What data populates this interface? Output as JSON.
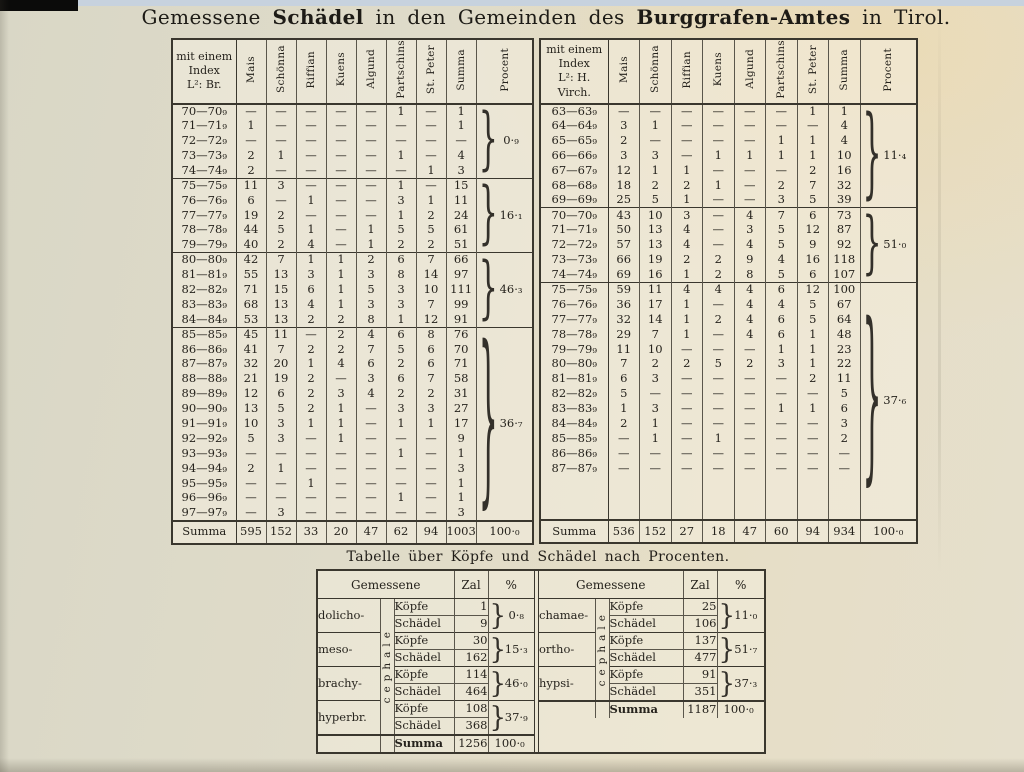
{
  "page": {
    "title_parts": [
      {
        "text": "Gemessene ",
        "bold": false
      },
      {
        "text": "Schädel",
        "bold": true
      },
      {
        "text": " in den Gemeinden des ",
        "bold": false
      },
      {
        "text": "Burggrafen-Amtes",
        "bold": true
      },
      {
        "text": " in Tirol.",
        "bold": false
      }
    ]
  },
  "main_tables": [
    {
      "index_label_lines": [
        "mit einem",
        "Index",
        "L²: Br."
      ],
      "columns": [
        "Mais",
        "Schönna",
        "Riffian",
        "Kuens",
        "Algund",
        "Partschins",
        "St. Peter",
        "Summa",
        "Procent"
      ],
      "rows": [
        {
          "label": "70—70₉",
          "values": [
            "—",
            "—",
            "—",
            "—",
            "—",
            "1",
            "—"
          ],
          "summa": "1"
        },
        {
          "label": "71—71₉",
          "values": [
            "1",
            "—",
            "—",
            "—",
            "—",
            "—",
            "—"
          ],
          "summa": "1"
        },
        {
          "label": "72—72₉",
          "values": [
            "—",
            "—",
            "—",
            "—",
            "—",
            "—",
            "—"
          ],
          "summa": "—"
        },
        {
          "label": "73—73₉",
          "values": [
            "2",
            "1",
            "—",
            "—",
            "—",
            "1",
            "—"
          ],
          "summa": "4"
        },
        {
          "label": "74—74₉",
          "values": [
            "2",
            "—",
            "—",
            "—",
            "—",
            "—",
            "1"
          ],
          "summa": "3"
        },
        {
          "label": "75—75₉",
          "values": [
            "11",
            "3",
            "—",
            "—",
            "—",
            "1",
            "—"
          ],
          "summa": "15"
        },
        {
          "label": "76—76₉",
          "values": [
            "6",
            "—",
            "1",
            "—",
            "—",
            "3",
            "1"
          ],
          "summa": "11"
        },
        {
          "label": "77—77₉",
          "values": [
            "19",
            "2",
            "—",
            "—",
            "—",
            "1",
            "2"
          ],
          "summa": "24"
        },
        {
          "label": "78—78₉",
          "values": [
            "44",
            "5",
            "1",
            "—",
            "1",
            "5",
            "5"
          ],
          "summa": "61"
        },
        {
          "label": "79—79₉",
          "values": [
            "40",
            "2",
            "4",
            "—",
            "1",
            "2",
            "2"
          ],
          "summa": "51"
        },
        {
          "label": "80—80₉",
          "values": [
            "42",
            "7",
            "1",
            "1",
            "2",
            "6",
            "7"
          ],
          "summa": "66"
        },
        {
          "label": "81—81₉",
          "values": [
            "55",
            "13",
            "3",
            "1",
            "3",
            "8",
            "14"
          ],
          "summa": "97"
        },
        {
          "label": "82—82₉",
          "values": [
            "71",
            "15",
            "6",
            "1",
            "5",
            "3",
            "10"
          ],
          "summa": "111"
        },
        {
          "label": "83—83₉",
          "values": [
            "68",
            "13",
            "4",
            "1",
            "3",
            "3",
            "7"
          ],
          "summa": "99"
        },
        {
          "label": "84—84₉",
          "values": [
            "53",
            "13",
            "2",
            "2",
            "8",
            "1",
            "12"
          ],
          "summa": "91"
        },
        {
          "label": "85—85₉",
          "values": [
            "45",
            "11",
            "—",
            "2",
            "4",
            "6",
            "8"
          ],
          "summa": "76"
        },
        {
          "label": "86—86₉",
          "values": [
            "41",
            "7",
            "2",
            "2",
            "7",
            "5",
            "6"
          ],
          "summa": "70"
        },
        {
          "label": "87—87₉",
          "values": [
            "32",
            "20",
            "1",
            "4",
            "6",
            "2",
            "6"
          ],
          "summa": "71"
        },
        {
          "label": "88—88₉",
          "values": [
            "21",
            "19",
            "2",
            "—",
            "3",
            "6",
            "7"
          ],
          "summa": "58"
        },
        {
          "label": "89—89₉",
          "values": [
            "12",
            "6",
            "2",
            "3",
            "4",
            "2",
            "2"
          ],
          "summa": "31"
        },
        {
          "label": "90—90₉",
          "values": [
            "13",
            "5",
            "2",
            "1",
            "—",
            "3",
            "3"
          ],
          "summa": "27"
        },
        {
          "label": "91—91₉",
          "values": [
            "10",
            "3",
            "1",
            "1",
            "—",
            "1",
            "1"
          ],
          "summa": "17"
        },
        {
          "label": "92—92₉",
          "values": [
            "5",
            "3",
            "—",
            "1",
            "—",
            "—",
            "—"
          ],
          "summa": "9"
        },
        {
          "label": "93—93₉",
          "values": [
            "—",
            "—",
            "—",
            "—",
            "—",
            "1",
            "—"
          ],
          "summa": "1"
        },
        {
          "label": "94—94₉",
          "values": [
            "2",
            "1",
            "—",
            "—",
            "—",
            "—",
            "—"
          ],
          "summa": "3"
        },
        {
          "label": "95—95₉",
          "values": [
            "—",
            "—",
            "1",
            "—",
            "—",
            "—",
            "—"
          ],
          "summa": "1"
        },
        {
          "label": "96—96₉",
          "values": [
            "—",
            "—",
            "—",
            "—",
            "—",
            "1",
            "—"
          ],
          "summa": "1"
        },
        {
          "label": "97—97₉",
          "values": [
            "—",
            "3",
            "—",
            "—",
            "—",
            "—",
            "—"
          ],
          "summa": "3"
        }
      ],
      "groups": [
        {
          "rows": 5,
          "procent": "0·₉"
        },
        {
          "rows": 5,
          "procent": "16·₁"
        },
        {
          "rows": 5,
          "procent": "46·₃"
        },
        {
          "rows": 13,
          "procent": "36·₇"
        }
      ],
      "summa_row": {
        "label": "Summa",
        "values": [
          "595",
          "152",
          "33",
          "20",
          "47",
          "62",
          "94"
        ],
        "summa": "1003",
        "procent": "100·₀"
      }
    },
    {
      "index_label_lines": [
        "mit einem",
        "Index",
        "L²: H. Virch."
      ],
      "columns": [
        "Mais",
        "Schönna",
        "Riffian",
        "Kuens",
        "Algund",
        "Partschins",
        "St. Peter",
        "Summa",
        "Procent"
      ],
      "rows": [
        {
          "label": "63—63₉",
          "values": [
            "—",
            "—",
            "—",
            "—",
            "—",
            "—",
            "1"
          ],
          "summa": "1"
        },
        {
          "label": "64—64₉",
          "values": [
            "3",
            "1",
            "—",
            "—",
            "—",
            "—",
            "—"
          ],
          "summa": "4"
        },
        {
          "label": "65—65₉",
          "values": [
            "2",
            "—",
            "—",
            "—",
            "—",
            "1",
            "1"
          ],
          "summa": "4"
        },
        {
          "label": "66—66₉",
          "values": [
            "3",
            "3",
            "—",
            "1",
            "1",
            "1",
            "1"
          ],
          "summa": "10"
        },
        {
          "label": "67—67₉",
          "values": [
            "12",
            "1",
            "1",
            "—",
            "—",
            "—",
            "2"
          ],
          "summa": "16"
        },
        {
          "label": "68—68₉",
          "values": [
            "18",
            "2",
            "2",
            "1",
            "—",
            "2",
            "7"
          ],
          "summa": "32"
        },
        {
          "label": "69—69₉",
          "values": [
            "25",
            "5",
            "1",
            "—",
            "—",
            "3",
            "5"
          ],
          "summa": "39"
        },
        {
          "label": "70—70₉",
          "values": [
            "43",
            "10",
            "3",
            "—",
            "4",
            "7",
            "6"
          ],
          "summa": "73"
        },
        {
          "label": "71—71₉",
          "values": [
            "50",
            "13",
            "4",
            "—",
            "3",
            "5",
            "12"
          ],
          "summa": "87"
        },
        {
          "label": "72—72₉",
          "values": [
            "57",
            "13",
            "4",
            "—",
            "4",
            "5",
            "9"
          ],
          "summa": "92"
        },
        {
          "label": "73—73₉",
          "values": [
            "66",
            "19",
            "2",
            "2",
            "9",
            "4",
            "16"
          ],
          "summa": "118"
        },
        {
          "label": "74—74₉",
          "values": [
            "69",
            "16",
            "1",
            "2",
            "8",
            "5",
            "6"
          ],
          "summa": "107"
        },
        {
          "label": "75—75₉",
          "values": [
            "59",
            "11",
            "4",
            "4",
            "4",
            "6",
            "12"
          ],
          "summa": "100"
        },
        {
          "label": "76—76₉",
          "values": [
            "36",
            "17",
            "1",
            "—",
            "4",
            "4",
            "5"
          ],
          "summa": "67"
        },
        {
          "label": "77—77₉",
          "values": [
            "32",
            "14",
            "1",
            "2",
            "4",
            "6",
            "5"
          ],
          "summa": "64"
        },
        {
          "label": "78—78₉",
          "values": [
            "29",
            "7",
            "1",
            "—",
            "4",
            "6",
            "1"
          ],
          "summa": "48"
        },
        {
          "label": "79—79₉",
          "values": [
            "11",
            "10",
            "—",
            "—",
            "—",
            "1",
            "1"
          ],
          "summa": "23"
        },
        {
          "label": "80—80₉",
          "values": [
            "7",
            "2",
            "2",
            "5",
            "2",
            "3",
            "1"
          ],
          "summa": "22"
        },
        {
          "label": "81—81₉",
          "values": [
            "6",
            "3",
            "—",
            "—",
            "—",
            "—",
            "2"
          ],
          "summa": "11"
        },
        {
          "label": "82—82₉",
          "values": [
            "5",
            "—",
            "—",
            "—",
            "—",
            "—",
            "—"
          ],
          "summa": "5"
        },
        {
          "label": "83—83₉",
          "values": [
            "1",
            "3",
            "—",
            "—",
            "—",
            "1",
            "1"
          ],
          "summa": "6"
        },
        {
          "label": "84—84₉",
          "values": [
            "2",
            "1",
            "—",
            "—",
            "—",
            "—",
            "—"
          ],
          "summa": "3"
        },
        {
          "label": "85—85₉",
          "values": [
            "—",
            "1",
            "—",
            "1",
            "—",
            "—",
            "—"
          ],
          "summa": "2"
        },
        {
          "label": "86—86₉",
          "values": [
            "—",
            "—",
            "—",
            "—",
            "—",
            "—",
            "—"
          ],
          "summa": "—"
        },
        {
          "label": "87—87₉",
          "values": [
            "—",
            "—",
            "—",
            "—",
            "—",
            "—",
            "—"
          ],
          "summa": "—"
        }
      ],
      "groups": [
        {
          "rows": 7,
          "procent": "11·₄"
        },
        {
          "rows": 5,
          "procent": "51·₀"
        },
        {
          "rows": 13,
          "procent": "37·₆"
        }
      ],
      "summa_row": {
        "label": "Summa",
        "values": [
          "536",
          "152",
          "27",
          "18",
          "47",
          "60",
          "94"
        ],
        "summa": "934",
        "procent": "100·₀"
      }
    }
  ],
  "percent_table": {
    "title": "Tabelle über Köpfe und Schädel nach Procenten.",
    "header": {
      "gemessene": "Gemessene",
      "zal": "Zal",
      "percent": "%"
    },
    "halves": [
      {
        "side_label": "cephale",
        "groups": [
          {
            "klass": "dolicho-",
            "rows": [
              [
                "Köpfe",
                "1"
              ],
              [
                "Schädel",
                "9"
              ]
            ],
            "percent": "0·₈"
          },
          {
            "klass": "meso-",
            "rows": [
              [
                "Köpfe",
                "30"
              ],
              [
                "Schädel",
                "162"
              ]
            ],
            "percent": "15·₃"
          },
          {
            "klass": "brachy-",
            "rows": [
              [
                "Köpfe",
                "114"
              ],
              [
                "Schädel",
                "464"
              ]
            ],
            "percent": "46·₀"
          },
          {
            "klass": "hyperbr.",
            "rows": [
              [
                "Köpfe",
                "108"
              ],
              [
                "Schädel",
                "368"
              ]
            ],
            "percent": "37·₉"
          }
        ],
        "summa": {
          "label": "Summa",
          "zal": "1256",
          "percent": "100·₀"
        }
      },
      {
        "side_label": "cephale",
        "groups": [
          {
            "klass": "chamae-",
            "rows": [
              [
                "Köpfe",
                "25"
              ],
              [
                "Schädel",
                "106"
              ]
            ],
            "percent": "11·₀"
          },
          {
            "klass": "ortho-",
            "rows": [
              [
                "Köpfe",
                "137"
              ],
              [
                "Schädel",
                "477"
              ]
            ],
            "percent": "51·₇"
          },
          {
            "klass": "hypsi-",
            "rows": [
              [
                "Köpfe",
                "91"
              ],
              [
                "Schädel",
                "351"
              ]
            ],
            "percent": "37·₃"
          }
        ],
        "summa": {
          "label": "Summa",
          "zal": "1187",
          "percent": "100·₀"
        }
      }
    ]
  }
}
